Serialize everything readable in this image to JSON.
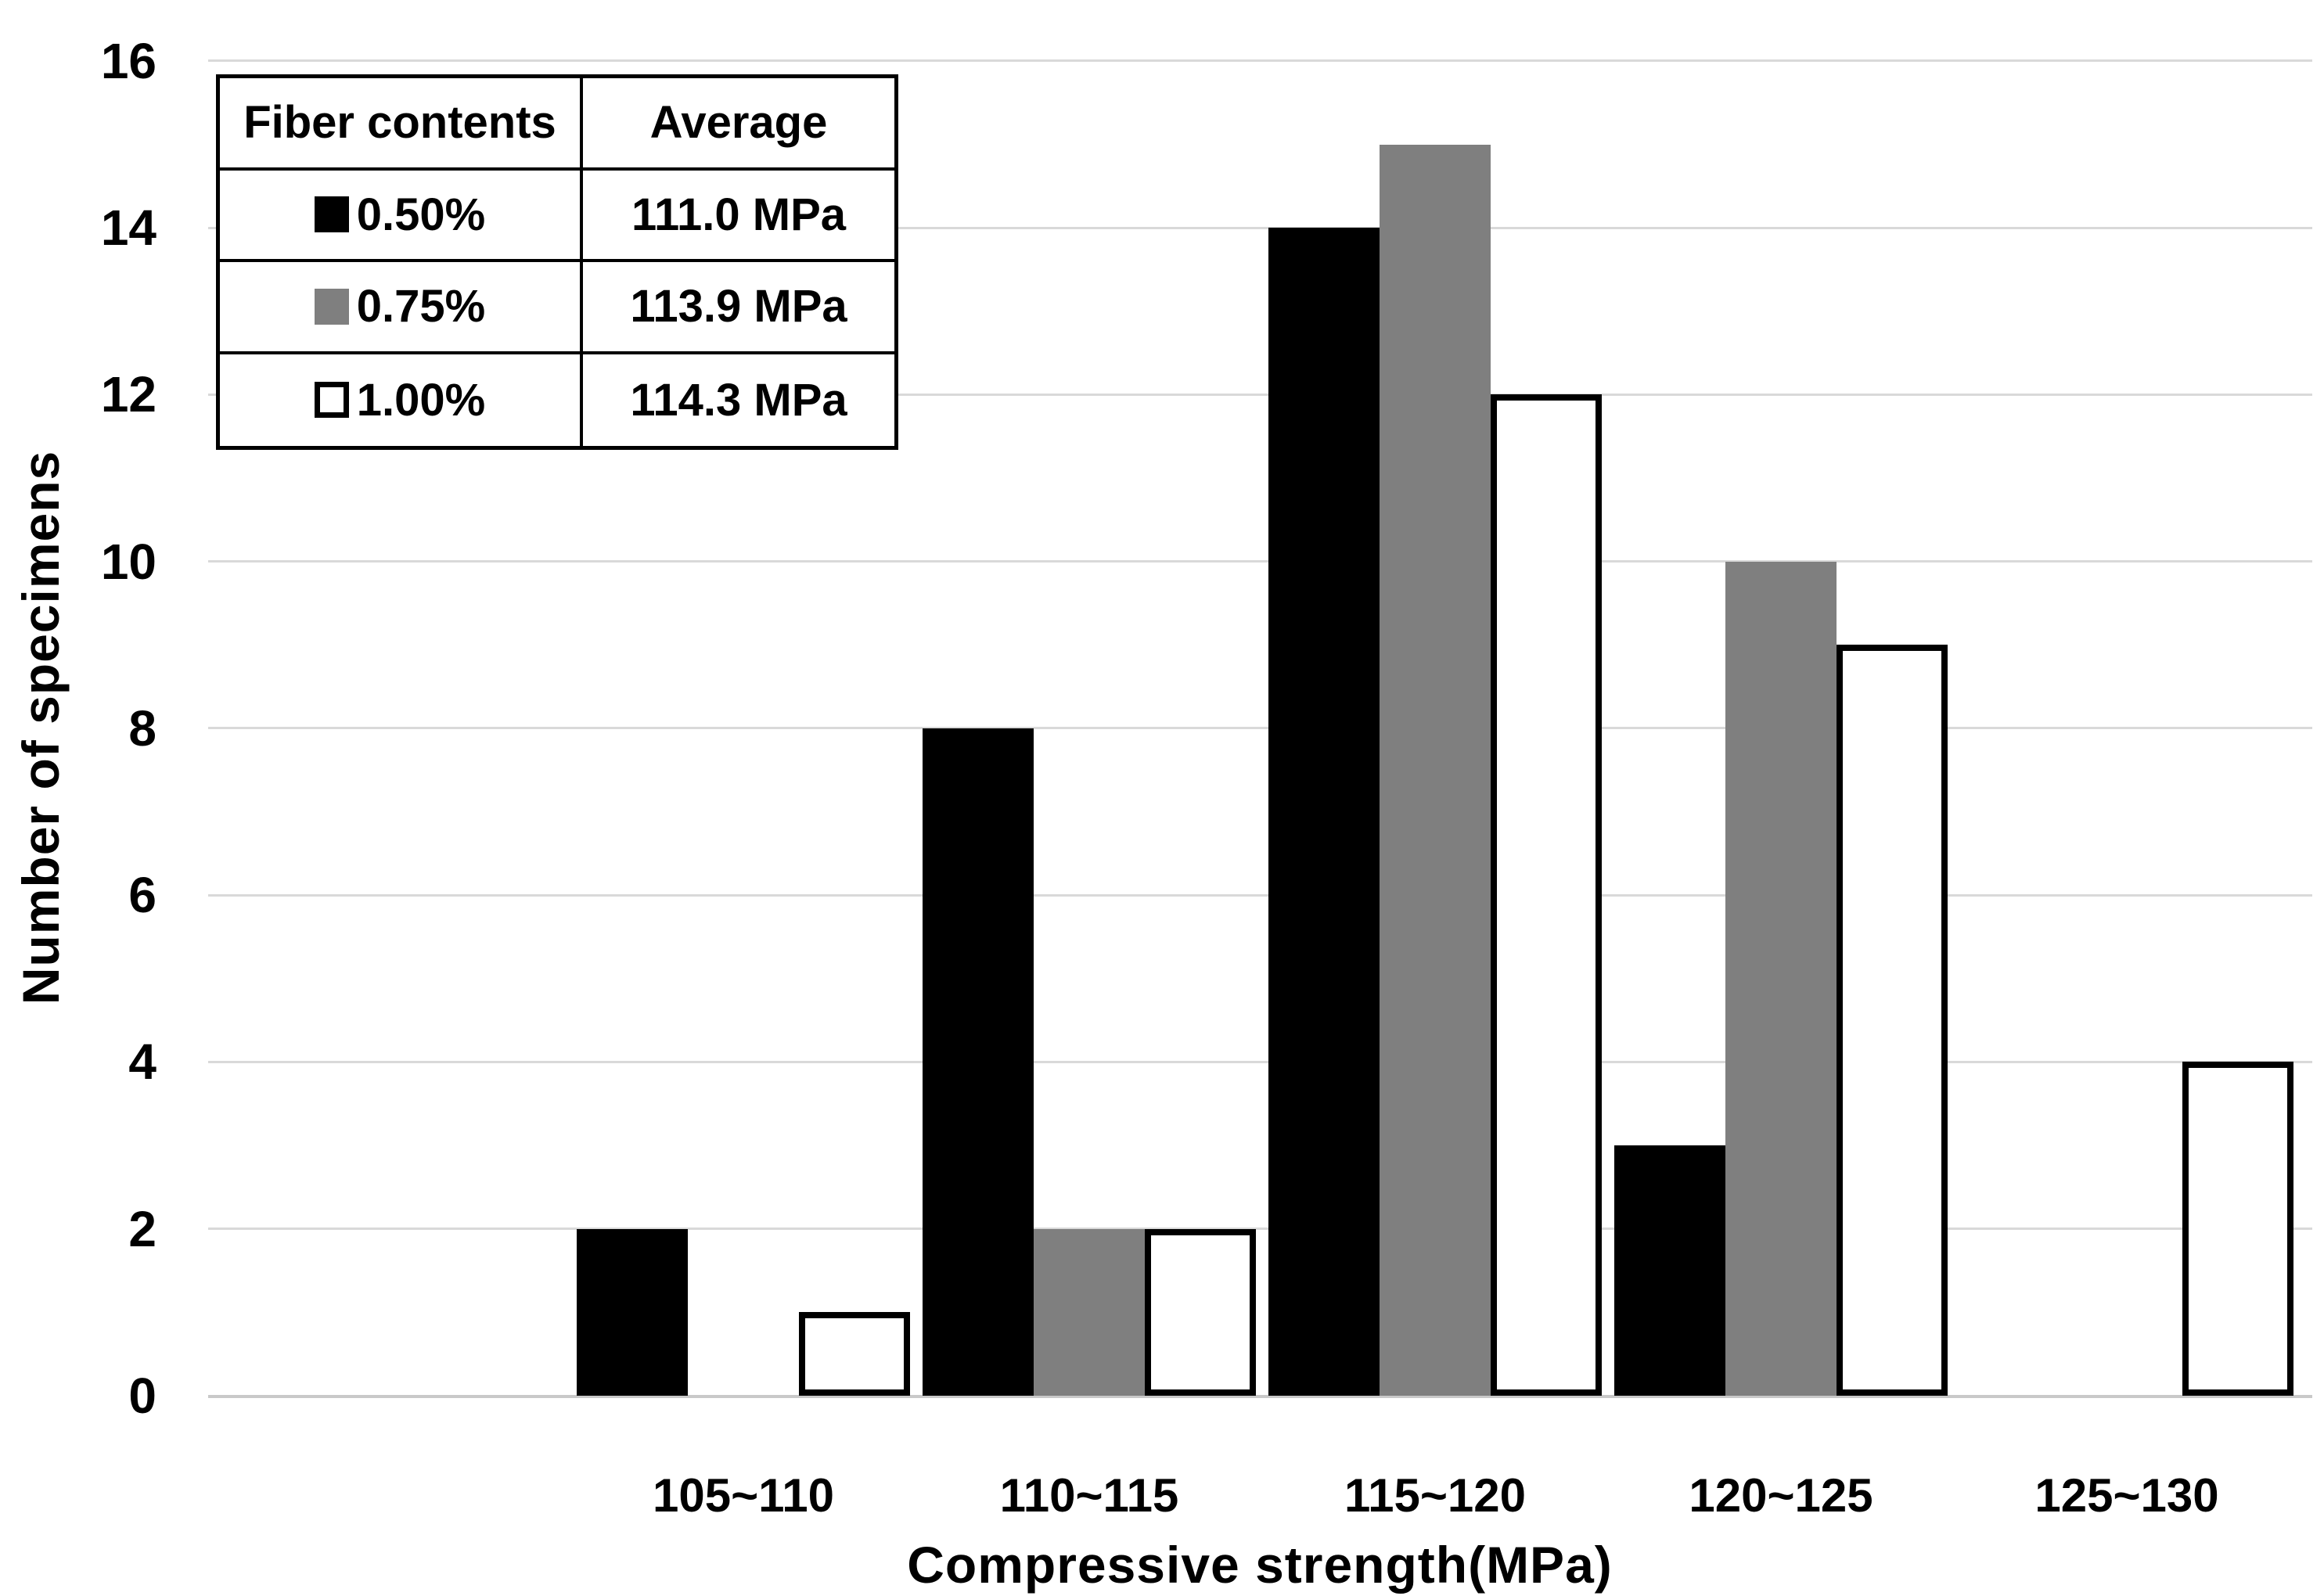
{
  "chart_data": {
    "type": "bar",
    "title": "",
    "xlabel": "Compressive strength(MPa)",
    "ylabel": "Number of specimens",
    "categories": [
      "105~110",
      "110~115",
      "115~120",
      "120~125",
      "125~130"
    ],
    "series": [
      {
        "name": "0.50%",
        "color": "#000000",
        "values": [
          2,
          8,
          14,
          3,
          0
        ],
        "average": "111.0 MPa"
      },
      {
        "name": "0.75%",
        "color": "#7f7f7f",
        "values": [
          0,
          2,
          15,
          10,
          0
        ],
        "average": "113.9 MPa"
      },
      {
        "name": "1.00%",
        "color": "#ffffff",
        "border_color": "#000000",
        "values": [
          1,
          2,
          12,
          9,
          4
        ],
        "average": "114.3 MPa"
      }
    ],
    "ylim": [
      0,
      16
    ],
    "ytick_interval": 2,
    "yticks": [
      0,
      2,
      4,
      6,
      8,
      10,
      12,
      14,
      16
    ],
    "grid": "horizontal",
    "gridline_color": "#d9d9d9",
    "leading_empty_category_slot": true,
    "legend": {
      "position": "top-left",
      "style": "table",
      "headers": [
        "Fiber contents",
        "Average"
      ]
    }
  }
}
